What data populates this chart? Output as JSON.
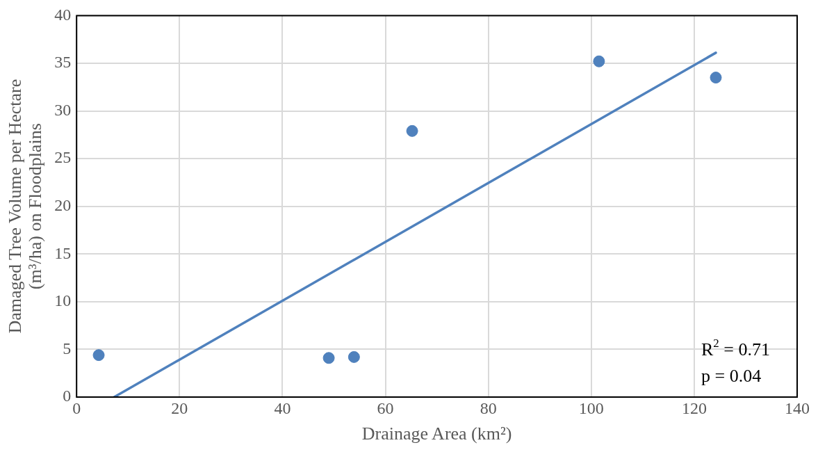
{
  "chart_data": {
    "type": "scatter",
    "xlabel": "Drainage Area (km²)",
    "ylabel": "Damaged Tree Volume per Hectare (m³/ha) on Floodplains",
    "xlim": [
      0,
      140
    ],
    "xticks": [
      0,
      20,
      40,
      60,
      80,
      100,
      120,
      140
    ],
    "ylim": [
      0,
      40
    ],
    "yticks": [
      0,
      5,
      10,
      15,
      20,
      25,
      30,
      35,
      40
    ],
    "grid": true,
    "legend": false,
    "series": [
      {
        "marker": "circle",
        "color": "#4f81bd",
        "x": [
          4.3,
          49.0,
          53.9,
          65.2,
          101.5,
          124.2
        ],
        "values": [
          4.4,
          4.1,
          4.2,
          27.9,
          35.2,
          33.5
        ]
      },
      {
        "type": "line",
        "marker": "none",
        "color": "#4f81bd",
        "x": [
          7.3,
          124.2
        ],
        "values": [
          0,
          36.1
        ]
      }
    ],
    "annotations": [
      "R$^{2}$ = 0.71",
      "p = 0.04"
    ]
  }
}
